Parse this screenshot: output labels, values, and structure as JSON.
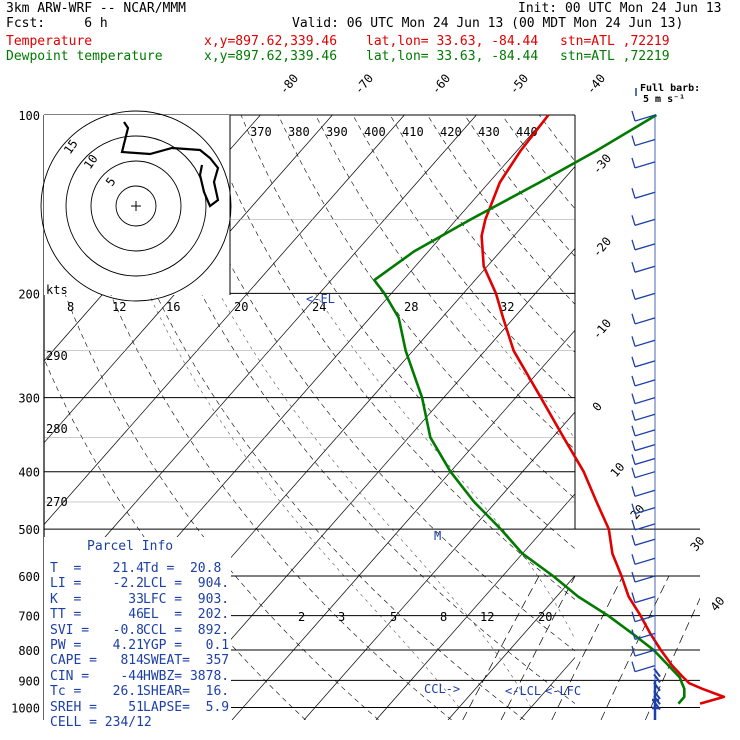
{
  "header": {
    "model": "3km ARW-WRF -- NCAR/MMM",
    "init": "Init: 00 UTC Mon 24 Jun 13",
    "fcst": "Fcst:     6 h",
    "valid": "Valid: 06 UTC Mon 24 Jun 13 (00 MDT Mon 24 Jun 13)"
  },
  "legend": {
    "temperature_label": "Temperature",
    "dewpoint_label": "Dewpoint temperature",
    "xy": "x,y=897.62,339.46",
    "latlon": "lat,lon= 33.63, -84.44",
    "stn": "stn=ATL ,72219",
    "temp_color": "#e00000",
    "dew_color": "#007a00"
  },
  "barb_key": {
    "label1": "Full barb:",
    "label2": "5 m s⁻¹"
  },
  "parcel_info": {
    "title": "Parcel Info",
    "rows": [
      [
        "T  =    21.4",
        "Td =  20.8"
      ],
      [
        "LI =    -2.2",
        "LCL =  904."
      ],
      [
        "K  =      33",
        "LFC =  903."
      ],
      [
        "TT =      46",
        "EL  =  202."
      ],
      [
        "SVI =   -0.8",
        "CCL =  892."
      ],
      [
        "PW =    4.21",
        "YGP =   0.1"
      ],
      [
        "CAPE =   814",
        "SWEAT=  357"
      ],
      [
        "CIN =    -44",
        "HWBZ= 3878."
      ],
      [
        "Tc =    26.1",
        "SHEAR=  16."
      ],
      [
        "SREH =    51",
        "LAPSE=  5.9"
      ],
      [
        "CELL = 234/12",
        ""
      ]
    ]
  },
  "hodograph": {
    "ring_labels": [
      "5",
      "10",
      "15"
    ],
    "kts_label": "kts",
    "speed_ticks": [
      "8",
      "12",
      "16",
      "20",
      "24",
      "28",
      "32"
    ]
  },
  "chart_data": {
    "type": "line",
    "title": "",
    "xlabel": "",
    "ylabel": "",
    "pressure_levels": [
      100,
      200,
      300,
      400,
      500,
      600,
      700,
      800,
      900,
      1000
    ],
    "isotherm_labels": [
      "-80",
      "-70",
      "-60",
      "-50",
      "-40",
      "-30",
      "-20",
      "-10",
      "0",
      "10",
      "20",
      "30",
      "40"
    ],
    "theta_labels": [
      "370",
      "380",
      "390",
      "400",
      "410",
      "420",
      "430",
      "440"
    ],
    "mixing_ratio_labels": [
      "2",
      "3",
      "5",
      "8",
      "12",
      "20"
    ],
    "dry_adiabat_labels": [
      "290",
      "280",
      "270"
    ],
    "parcel_markers": [
      "CCL",
      "LCL",
      "LFC",
      "M",
      "EL"
    ],
    "series": [
      {
        "name": "Temperature",
        "color": "#e00000",
        "pressure": [
          985,
          960,
          930,
          910,
          890,
          850,
          800,
          750,
          700,
          650,
          600,
          550,
          500,
          450,
          400,
          350,
          300,
          250,
          220,
          200,
          180,
          160,
          150,
          130,
          115,
          100
        ],
        "temp_c": [
          23.0,
          25.5,
          21.5,
          19.0,
          17.5,
          14.5,
          11.0,
          7.5,
          4.0,
          0.0,
          -3.5,
          -7.5,
          -11.0,
          -16.0,
          -21.5,
          -28.5,
          -36.5,
          -46.0,
          -51.5,
          -55.5,
          -60.5,
          -64.5,
          -66.0,
          -68.5,
          -69.5,
          -70.0
        ]
      },
      {
        "name": "Dewpoint temperature",
        "color": "#007a00",
        "pressure": [
          985,
          960,
          930,
          910,
          890,
          850,
          800,
          750,
          700,
          650,
          600,
          550,
          500,
          450,
          400,
          350,
          300,
          250,
          220,
          200,
          190,
          170,
          150,
          130,
          115,
          100
        ],
        "temp_c": [
          20.0,
          20.0,
          19.0,
          18.0,
          17.0,
          14.0,
          10.0,
          5.0,
          -0.5,
          -7.0,
          -13.0,
          -20.0,
          -26.0,
          -33.0,
          -40.0,
          -47.0,
          -53.0,
          -61.0,
          -66.0,
          -71.0,
          -74.0,
          -72.0,
          -68.0,
          -63.0,
          -59.0,
          -55.0
        ]
      }
    ],
    "wind_barbs_pressure": [
      100,
      110,
      120,
      135,
      150,
      165,
      180,
      200,
      220,
      240,
      260,
      280,
      300,
      320,
      340,
      360,
      380,
      400,
      430,
      460,
      490,
      520,
      560,
      600,
      650,
      700,
      750,
      800,
      850,
      880,
      900,
      930,
      960,
      980,
      1000
    ]
  }
}
